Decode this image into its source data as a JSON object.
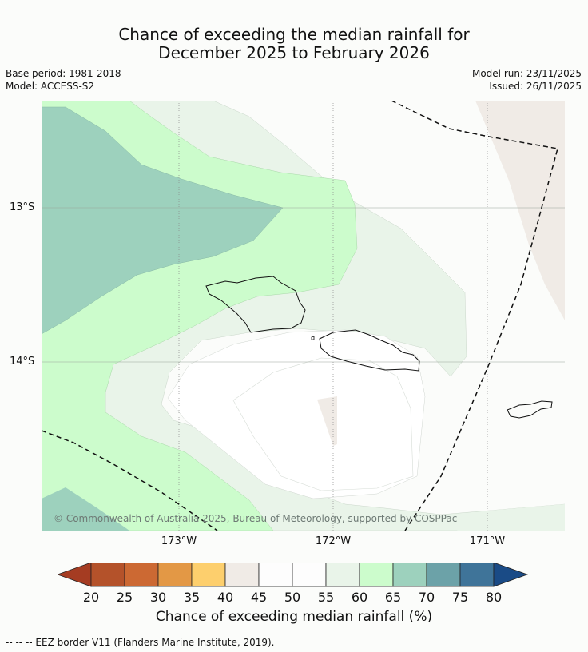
{
  "title": {
    "line1": "Chance of exceeding the median rainfall for",
    "line2": "December 2025 to February 2026"
  },
  "meta": {
    "base_period": "Base period: 1981-2018",
    "model": "Model: ACCESS-S2",
    "model_run": "Model run: 23/11/2025",
    "issued": "Issued: 26/11/2025"
  },
  "map": {
    "lat_labels": [
      "13°S",
      "14°S"
    ],
    "lon_labels": [
      "173°W",
      "172°W",
      "171°W"
    ],
    "credit": "© Commonwealth of Australia 2025, Bureau of Meteorology, supported by COSPPac",
    "colors": {
      "c70_75": "#9dd1bd",
      "c60_65": "#ccfccc",
      "c55_60": "#e9f4e9",
      "c50_55": "#fbfcfa",
      "c40_45": "#f0ebe6"
    }
  },
  "colorbar": {
    "ticks": [
      "20",
      "25",
      "30",
      "35",
      "40",
      "45",
      "50",
      "55",
      "60",
      "65",
      "70",
      "75",
      "80"
    ],
    "colors": [
      "#a53c22",
      "#b4522a",
      "#cc6933",
      "#e39845",
      "#fdcf6d",
      "#f0ebe6",
      "#fdfdfd",
      "#fdfdfd",
      "#e9f4e9",
      "#ccfccc",
      "#9dd1bd",
      "#6ca2a8",
      "#3f7499",
      "#1a4b86"
    ],
    "label": "Chance of exceeding median rainfall (%)"
  },
  "footer": {
    "legend": "-- -- -- EEZ border V11 (Flanders Marine Institute, 2019)."
  }
}
